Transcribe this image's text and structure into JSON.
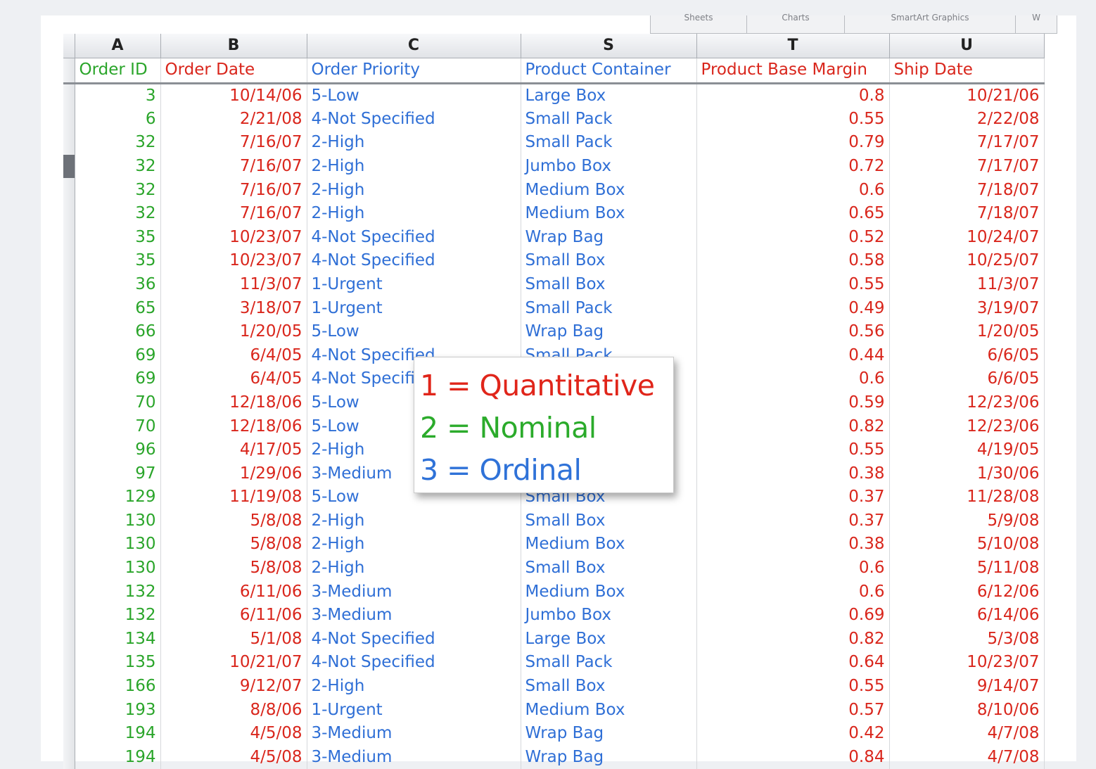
{
  "ribbon": {
    "tabs": [
      "Sheets",
      "Charts",
      "SmartArt Graphics",
      "W"
    ]
  },
  "columns": {
    "letters": [
      "A",
      "B",
      "C",
      "S",
      "T",
      "U"
    ],
    "headers": [
      "Order ID",
      "Order Date",
      "Order Priority",
      "Product Container",
      "Product Base Margin",
      "Ship Date"
    ]
  },
  "rows": [
    {
      "id": "3",
      "order_date": "10/14/06",
      "priority": "5-Low",
      "container": "Large Box",
      "margin": "0.8",
      "ship": "10/21/06"
    },
    {
      "id": "6",
      "order_date": "2/21/08",
      "priority": "4-Not Specified",
      "container": "Small Pack",
      "margin": "0.55",
      "ship": "2/22/08"
    },
    {
      "id": "32",
      "order_date": "7/16/07",
      "priority": "2-High",
      "container": "Small Pack",
      "margin": "0.79",
      "ship": "7/17/07"
    },
    {
      "id": "32",
      "order_date": "7/16/07",
      "priority": "2-High",
      "container": "Jumbo Box",
      "margin": "0.72",
      "ship": "7/17/07"
    },
    {
      "id": "32",
      "order_date": "7/16/07",
      "priority": "2-High",
      "container": "Medium Box",
      "margin": "0.6",
      "ship": "7/18/07"
    },
    {
      "id": "32",
      "order_date": "7/16/07",
      "priority": "2-High",
      "container": "Medium Box",
      "margin": "0.65",
      "ship": "7/18/07"
    },
    {
      "id": "35",
      "order_date": "10/23/07",
      "priority": "4-Not Specified",
      "container": "Wrap Bag",
      "margin": "0.52",
      "ship": "10/24/07"
    },
    {
      "id": "35",
      "order_date": "10/23/07",
      "priority": "4-Not Specified",
      "container": "Small Box",
      "margin": "0.58",
      "ship": "10/25/07"
    },
    {
      "id": "36",
      "order_date": "11/3/07",
      "priority": "1-Urgent",
      "container": "Small Box",
      "margin": "0.55",
      "ship": "11/3/07"
    },
    {
      "id": "65",
      "order_date": "3/18/07",
      "priority": "1-Urgent",
      "container": "Small Pack",
      "margin": "0.49",
      "ship": "3/19/07"
    },
    {
      "id": "66",
      "order_date": "1/20/05",
      "priority": "5-Low",
      "container": "Wrap Bag",
      "margin": "0.56",
      "ship": "1/20/05"
    },
    {
      "id": "69",
      "order_date": "6/4/05",
      "priority": "4-Not Specified",
      "container": "Small Pack",
      "margin": "0.44",
      "ship": "6/6/05"
    },
    {
      "id": "69",
      "order_date": "6/4/05",
      "priority": "4-Not Specified",
      "container": "",
      "margin": "0.6",
      "ship": "6/6/05"
    },
    {
      "id": "70",
      "order_date": "12/18/06",
      "priority": "5-Low",
      "container": "",
      "margin": "0.59",
      "ship": "12/23/06"
    },
    {
      "id": "70",
      "order_date": "12/18/06",
      "priority": "5-Low",
      "container": "",
      "margin": "0.82",
      "ship": "12/23/06"
    },
    {
      "id": "96",
      "order_date": "4/17/05",
      "priority": "2-High",
      "container": "",
      "margin": "0.55",
      "ship": "4/19/05"
    },
    {
      "id": "97",
      "order_date": "1/29/06",
      "priority": "3-Medium",
      "container": "",
      "margin": "0.38",
      "ship": "1/30/06"
    },
    {
      "id": "129",
      "order_date": "11/19/08",
      "priority": "5-Low",
      "container": "Small Box",
      "margin": "0.37",
      "ship": "11/28/08"
    },
    {
      "id": "130",
      "order_date": "5/8/08",
      "priority": "2-High",
      "container": "Small Box",
      "margin": "0.37",
      "ship": "5/9/08"
    },
    {
      "id": "130",
      "order_date": "5/8/08",
      "priority": "2-High",
      "container": "Medium Box",
      "margin": "0.38",
      "ship": "5/10/08"
    },
    {
      "id": "130",
      "order_date": "5/8/08",
      "priority": "2-High",
      "container": "Small Box",
      "margin": "0.6",
      "ship": "5/11/08"
    },
    {
      "id": "132",
      "order_date": "6/11/06",
      "priority": "3-Medium",
      "container": "Medium Box",
      "margin": "0.6",
      "ship": "6/12/06"
    },
    {
      "id": "132",
      "order_date": "6/11/06",
      "priority": "3-Medium",
      "container": "Jumbo Box",
      "margin": "0.69",
      "ship": "6/14/06"
    },
    {
      "id": "134",
      "order_date": "5/1/08",
      "priority": "4-Not Specified",
      "container": "Large Box",
      "margin": "0.82",
      "ship": "5/3/08"
    },
    {
      "id": "135",
      "order_date": "10/21/07",
      "priority": "4-Not Specified",
      "container": "Small Pack",
      "margin": "0.64",
      "ship": "10/23/07"
    },
    {
      "id": "166",
      "order_date": "9/12/07",
      "priority": "2-High",
      "container": "Small Box",
      "margin": "0.55",
      "ship": "9/14/07"
    },
    {
      "id": "193",
      "order_date": "8/8/06",
      "priority": "1-Urgent",
      "container": "Medium Box",
      "margin": "0.57",
      "ship": "8/10/06"
    },
    {
      "id": "194",
      "order_date": "4/5/08",
      "priority": "3-Medium",
      "container": "Wrap Bag",
      "margin": "0.42",
      "ship": "4/7/08"
    },
    {
      "id": "194",
      "order_date": "4/5/08",
      "priority": "3-Medium",
      "container": "Wrap Bag",
      "margin": "0.84",
      "ship": "4/7/08"
    }
  ],
  "legend": {
    "quantitative": "1 = Quantitative",
    "nominal": "2 = Nominal",
    "ordinal": "3 = Ordinal"
  },
  "colors": {
    "quantitative": "#d9261c",
    "nominal": "#2aa52a",
    "ordinal": "#2f6fd6"
  }
}
